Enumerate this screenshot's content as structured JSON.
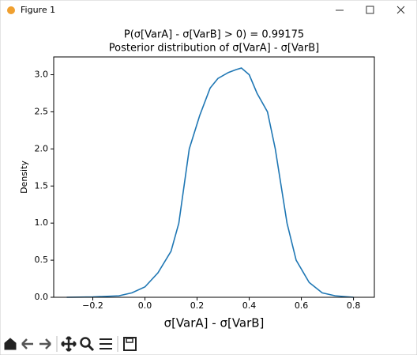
{
  "window_title": "Figure 1",
  "chart_data": {
    "type": "line",
    "title": "P(σ[VarA] - σ[VarB] > 0) = 0.99175",
    "subtitle": "Posterior distribution of σ[VarA] - σ[VarB]",
    "x_label": "σ[VarA] - σ[VarB]",
    "y_label": "Density",
    "x": [
      -0.3,
      -0.2,
      -0.1,
      -0.05,
      0.0,
      0.05,
      0.1,
      0.13,
      0.17,
      0.21,
      0.25,
      0.28,
      0.32,
      0.35,
      0.37,
      0.4,
      0.43,
      0.47,
      0.5,
      0.545,
      0.58,
      0.63,
      0.68,
      0.73,
      0.8
    ],
    "values": [
      0.0,
      0.005,
      0.02,
      0.06,
      0.14,
      0.33,
      0.62,
      1.0,
      2.0,
      2.45,
      2.82,
      2.95,
      3.03,
      3.07,
      3.09,
      3.0,
      2.75,
      2.5,
      2.0,
      1.0,
      0.5,
      0.2,
      0.06,
      0.02,
      0.0
    ],
    "color": "#1f77b4",
    "xlim": [
      -0.35,
      0.88
    ],
    "ylim": [
      0,
      3.24
    ],
    "xticks": [
      {
        "value": -0.2,
        "label": "−0.2"
      },
      {
        "value": 0,
        "label": "0.0"
      },
      0.2,
      0.4,
      0.6,
      0.8
    ],
    "yticks": [
      {
        "value": 0,
        "label": "0.0"
      },
      0.5,
      {
        "value": 1,
        "label": "1.0"
      },
      1.5,
      {
        "value": 2,
        "label": "2.0"
      },
      2.5,
      {
        "value": 3,
        "label": "3.0"
      }
    ],
    "grid": false
  }
}
